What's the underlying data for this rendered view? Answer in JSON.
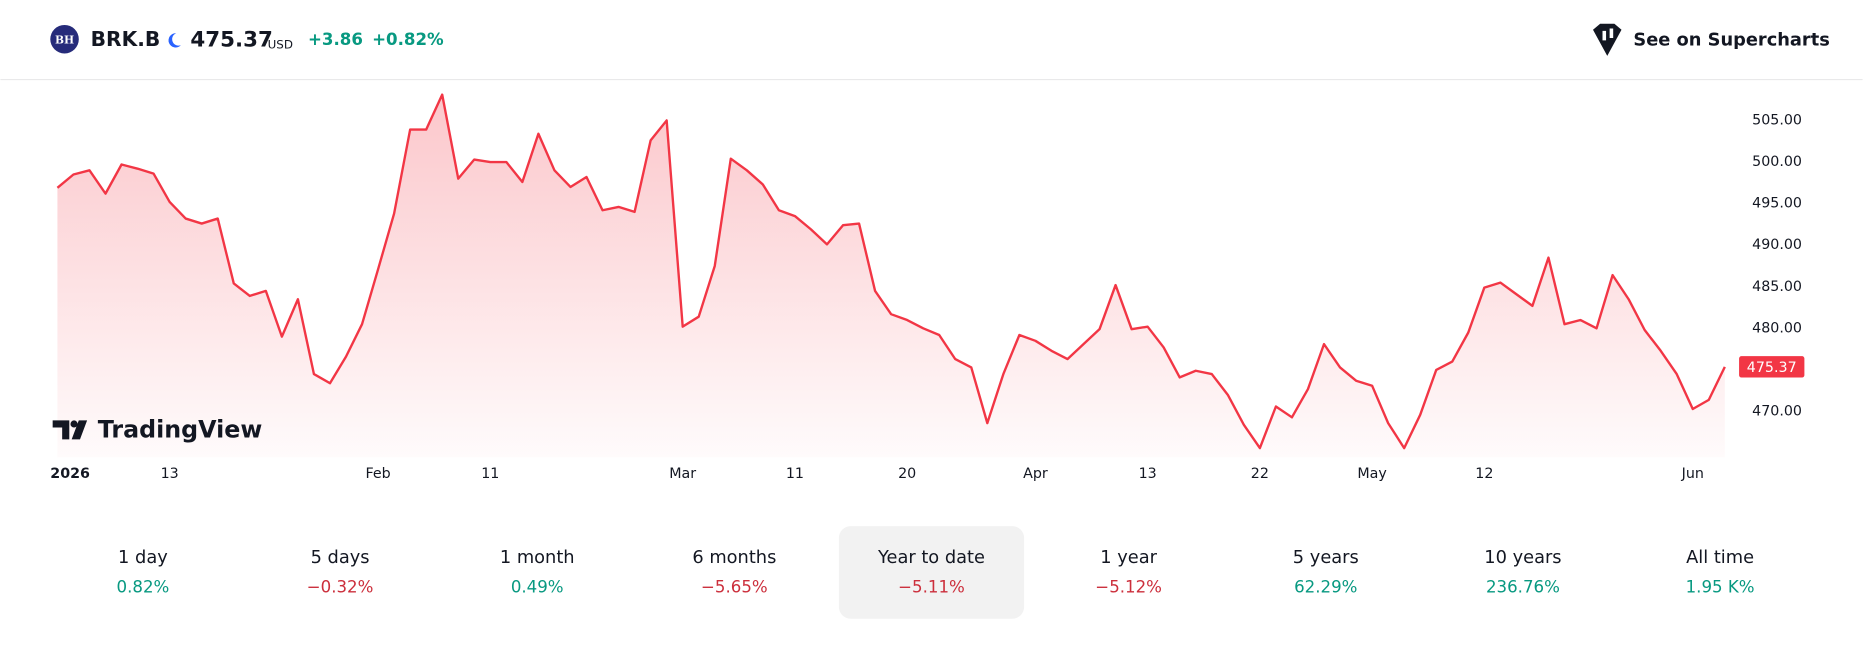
{
  "header": {
    "logo": "BH",
    "symbol": "BRK.B",
    "price": "475.37",
    "currency": "USD",
    "change": "+3.86",
    "change_percent": "+0.82%",
    "action": "See on Supercharts"
  },
  "chart_data": {
    "type": "area",
    "watermark": "TradingView",
    "color": "#f23645",
    "categories": [
      "2026",
      null,
      null,
      null,
      null,
      null,
      null,
      "13",
      null,
      null,
      null,
      null,
      null,
      null,
      null,
      null,
      null,
      null,
      null,
      null,
      "Feb",
      null,
      null,
      null,
      null,
      null,
      null,
      "11",
      null,
      null,
      null,
      null,
      null,
      null,
      null,
      null,
      null,
      null,
      null,
      "Mar",
      null,
      null,
      null,
      null,
      null,
      null,
      "11",
      null,
      null,
      null,
      null,
      null,
      null,
      "20",
      null,
      null,
      null,
      null,
      null,
      null,
      null,
      "Apr",
      null,
      null,
      null,
      null,
      null,
      null,
      "13",
      null,
      null,
      null,
      null,
      null,
      null,
      "22",
      null,
      null,
      null,
      null,
      null,
      null,
      "May",
      null,
      null,
      null,
      null,
      null,
      null,
      "12",
      null,
      null,
      null,
      null,
      null,
      null,
      null,
      null,
      null,
      null,
      null,
      null,
      "Jun",
      null,
      null
    ],
    "values": [
      496.9,
      498.5,
      499.0,
      496.2,
      499.7,
      499.2,
      498.6,
      495.2,
      493.2,
      492.6,
      493.2,
      485.4,
      483.9,
      484.5,
      479.0,
      483.5,
      474.5,
      473.4,
      476.6,
      480.5,
      487.1,
      493.8,
      503.9,
      503.9,
      508.1,
      498.0,
      500.3,
      500.0,
      500.0,
      497.6,
      503.4,
      499.0,
      497.0,
      498.2,
      494.2,
      494.6,
      494.0,
      502.6,
      505.0,
      480.2,
      481.4,
      487.5,
      500.4,
      499.0,
      497.3,
      494.2,
      493.5,
      491.9,
      490.1,
      492.4,
      492.6,
      484.5,
      481.7,
      481.0,
      480.0,
      479.2,
      476.3,
      475.3,
      468.6,
      474.5,
      479.2,
      478.5,
      477.3,
      476.3,
      478.1,
      479.9,
      485.2,
      479.9,
      480.2,
      477.7,
      474.1,
      474.9,
      474.5,
      472.0,
      468.4,
      465.6,
      470.6,
      469.3,
      472.7,
      478.1,
      475.3,
      473.7,
      473.1,
      468.6,
      465.6,
      469.6,
      475.0,
      476.0,
      479.5,
      484.9,
      485.5,
      484.1,
      482.7,
      488.5,
      480.5,
      481.0,
      480.0,
      486.4,
      483.5,
      479.8,
      477.3,
      474.5,
      470.3,
      471.4,
      475.37
    ],
    "ylim": [
      464.5,
      509.2
    ],
    "yticks": [
      {
        "value": 470,
        "label": "470.00"
      },
      {
        "value": 475,
        "label": "475.00"
      },
      {
        "value": 480,
        "label": "480.00"
      },
      {
        "value": 485,
        "label": "485.00"
      },
      {
        "value": 490,
        "label": "490.00"
      },
      {
        "value": 495,
        "label": "495.00"
      },
      {
        "value": 500,
        "label": "500.00"
      },
      {
        "value": 505,
        "label": "505.00"
      }
    ],
    "hidden_yticks": [
      475
    ]
  },
  "periods": [
    {
      "label": "1 day",
      "change": "0.82%"
    },
    {
      "label": "5 days",
      "change": "−0.32%"
    },
    {
      "label": "1 month",
      "change": "0.49%"
    },
    {
      "label": "6 months",
      "change": "−5.65%"
    },
    {
      "label": "Year to date",
      "change": "−5.11%",
      "selected": true
    },
    {
      "label": "1 year",
      "change": "−5.12%"
    },
    {
      "label": "5 years",
      "change": "62.29%"
    },
    {
      "label": "10 years",
      "change": "236.76%"
    },
    {
      "label": "All time",
      "change": "1.95 K%"
    }
  ]
}
